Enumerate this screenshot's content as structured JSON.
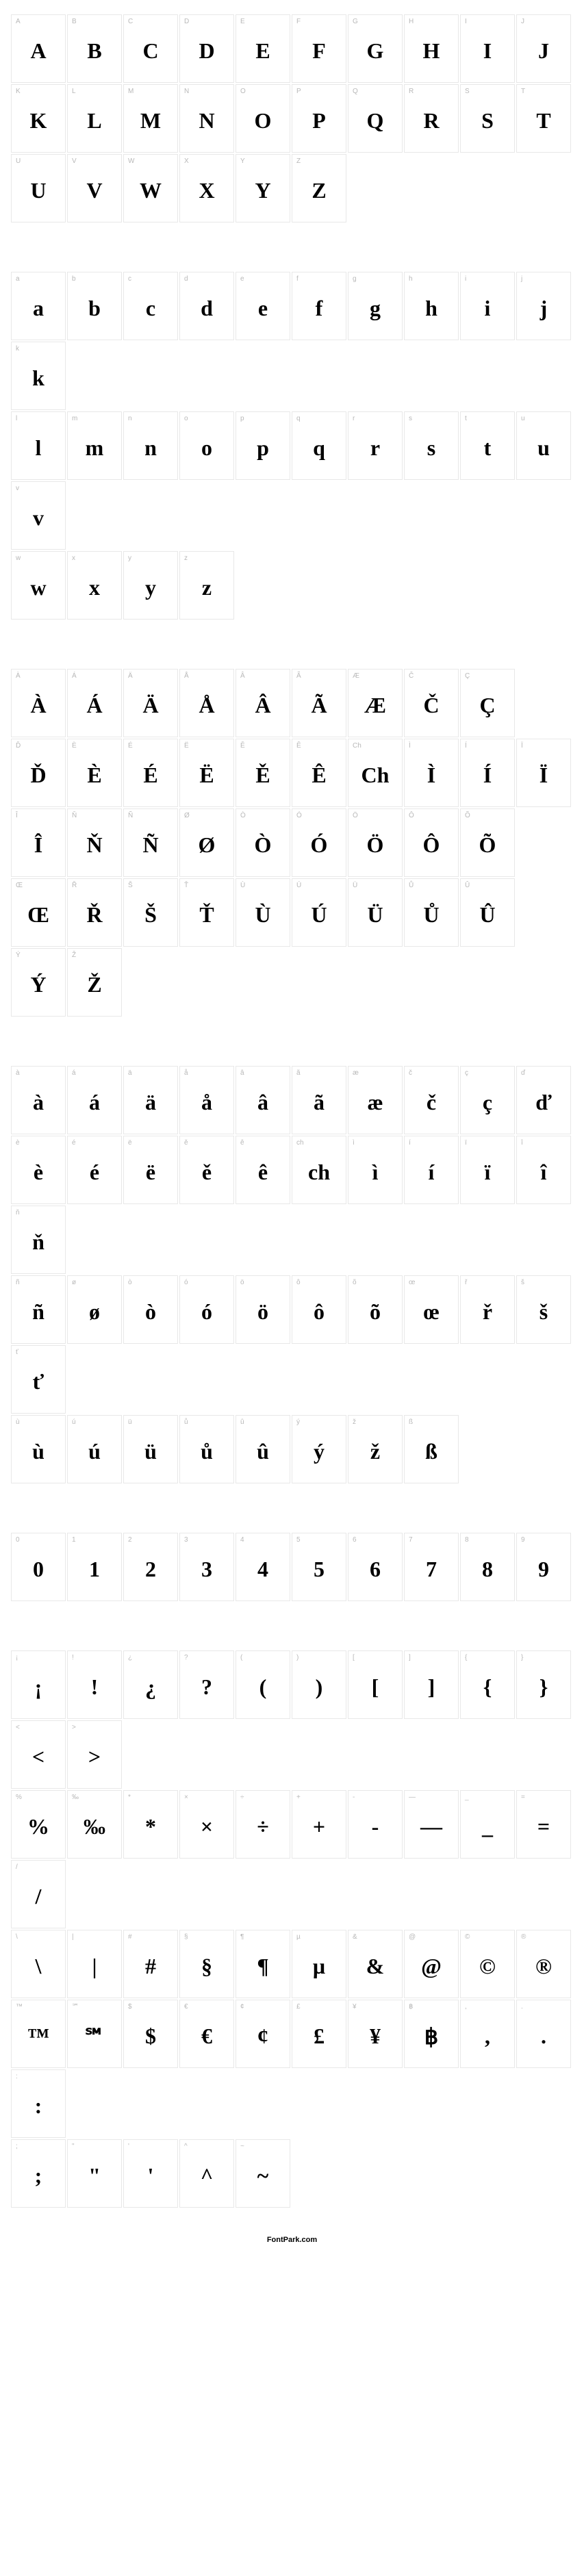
{
  "footer": "FontPark.com",
  "sections": [
    {
      "rows": [
        [
          {
            "l": "A",
            "g": "A"
          },
          {
            "l": "B",
            "g": "B"
          },
          {
            "l": "C",
            "g": "C"
          },
          {
            "l": "D",
            "g": "D"
          },
          {
            "l": "E",
            "g": "E"
          },
          {
            "l": "F",
            "g": "F"
          },
          {
            "l": "G",
            "g": "G"
          },
          {
            "l": "H",
            "g": "H"
          },
          {
            "l": "I",
            "g": "I"
          },
          {
            "l": "J",
            "g": "J"
          }
        ],
        [
          {
            "l": "K",
            "g": "K"
          },
          {
            "l": "L",
            "g": "L"
          },
          {
            "l": "M",
            "g": "M"
          },
          {
            "l": "N",
            "g": "N"
          },
          {
            "l": "O",
            "g": "O"
          },
          {
            "l": "P",
            "g": "P"
          },
          {
            "l": "Q",
            "g": "Q"
          },
          {
            "l": "R",
            "g": "R"
          },
          {
            "l": "S",
            "g": "S"
          },
          {
            "l": "T",
            "g": "T"
          }
        ],
        [
          {
            "l": "U",
            "g": "U"
          },
          {
            "l": "V",
            "g": "V"
          },
          {
            "l": "W",
            "g": "W"
          },
          {
            "l": "X",
            "g": "X"
          },
          {
            "l": "Y",
            "g": "Y"
          },
          {
            "l": "Z",
            "g": "Z"
          }
        ]
      ]
    },
    {
      "rows": [
        [
          {
            "l": "a",
            "g": "a"
          },
          {
            "l": "b",
            "g": "b"
          },
          {
            "l": "c",
            "g": "c"
          },
          {
            "l": "d",
            "g": "d"
          },
          {
            "l": "e",
            "g": "e"
          },
          {
            "l": "f",
            "g": "f"
          },
          {
            "l": "g",
            "g": "g"
          },
          {
            "l": "h",
            "g": "h"
          },
          {
            "l": "i",
            "g": "i"
          },
          {
            "l": "j",
            "g": "j"
          },
          {
            "l": "k",
            "g": "k"
          }
        ],
        [
          {
            "l": "l",
            "g": "l"
          },
          {
            "l": "m",
            "g": "m"
          },
          {
            "l": "n",
            "g": "n"
          },
          {
            "l": "o",
            "g": "o"
          },
          {
            "l": "p",
            "g": "p"
          },
          {
            "l": "q",
            "g": "q"
          },
          {
            "l": "r",
            "g": "r"
          },
          {
            "l": "s",
            "g": "s"
          },
          {
            "l": "t",
            "g": "t"
          },
          {
            "l": "u",
            "g": "u"
          },
          {
            "l": "v",
            "g": "v"
          }
        ],
        [
          {
            "l": "w",
            "g": "w"
          },
          {
            "l": "x",
            "g": "x"
          },
          {
            "l": "y",
            "g": "y"
          },
          {
            "l": "z",
            "g": "z"
          }
        ]
      ]
    },
    {
      "rows": [
        [
          {
            "l": "À",
            "g": "À"
          },
          {
            "l": "Á",
            "g": "Á"
          },
          {
            "l": "Ä",
            "g": "Ä"
          },
          {
            "l": "Å",
            "g": "Å"
          },
          {
            "l": "Â",
            "g": "Â"
          },
          {
            "l": "Ã",
            "g": "Ã"
          },
          {
            "l": "Æ",
            "g": "Æ"
          },
          {
            "l": "Č",
            "g": "Č"
          },
          {
            "l": "Ç",
            "g": "Ç"
          }
        ],
        [
          {
            "l": "Ď",
            "g": "Ď"
          },
          {
            "l": "È",
            "g": "È"
          },
          {
            "l": "É",
            "g": "É"
          },
          {
            "l": "Ë",
            "g": "Ë"
          },
          {
            "l": "Ě",
            "g": "Ě"
          },
          {
            "l": "Ê",
            "g": "Ê"
          },
          {
            "l": "Ch",
            "g": "Ch"
          },
          {
            "l": "Ì",
            "g": "Ì"
          },
          {
            "l": "Í",
            "g": "Í"
          },
          {
            "l": "Ï",
            "g": "Ï"
          }
        ],
        [
          {
            "l": "Î",
            "g": "Î"
          },
          {
            "l": "Ň",
            "g": "Ň"
          },
          {
            "l": "Ñ",
            "g": "Ñ"
          },
          {
            "l": "Ø",
            "g": "Ø"
          },
          {
            "l": "Ò",
            "g": "Ò"
          },
          {
            "l": "Ó",
            "g": "Ó"
          },
          {
            "l": "Ö",
            "g": "Ö"
          },
          {
            "l": "Ô",
            "g": "Ô"
          },
          {
            "l": "Õ",
            "g": "Õ"
          }
        ],
        [
          {
            "l": "Œ",
            "g": "Œ"
          },
          {
            "l": "Ř",
            "g": "Ř"
          },
          {
            "l": "Š",
            "g": "Š"
          },
          {
            "l": "Ť",
            "g": "Ť"
          },
          {
            "l": "Ù",
            "g": "Ù"
          },
          {
            "l": "Ú",
            "g": "Ú"
          },
          {
            "l": "Ü",
            "g": "Ü"
          },
          {
            "l": "Ů",
            "g": "Ů"
          },
          {
            "l": "Û",
            "g": "Û"
          }
        ],
        [
          {
            "l": "Ý",
            "g": "Ý"
          },
          {
            "l": "Ž",
            "g": "Ž"
          }
        ]
      ]
    },
    {
      "rows": [
        [
          {
            "l": "à",
            "g": "à"
          },
          {
            "l": "á",
            "g": "á"
          },
          {
            "l": "ä",
            "g": "ä"
          },
          {
            "l": "å",
            "g": "å"
          },
          {
            "l": "â",
            "g": "â"
          },
          {
            "l": "ã",
            "g": "ã"
          },
          {
            "l": "æ",
            "g": "æ"
          },
          {
            "l": "č",
            "g": "č"
          },
          {
            "l": "ç",
            "g": "ç"
          },
          {
            "l": "ď",
            "g": "ď"
          }
        ],
        [
          {
            "l": "è",
            "g": "è"
          },
          {
            "l": "é",
            "g": "é"
          },
          {
            "l": "ë",
            "g": "ë"
          },
          {
            "l": "ě",
            "g": "ě"
          },
          {
            "l": "ê",
            "g": "ê"
          },
          {
            "l": "ch",
            "g": "ch"
          },
          {
            "l": "ì",
            "g": "ì"
          },
          {
            "l": "í",
            "g": "í"
          },
          {
            "l": "ï",
            "g": "ï"
          },
          {
            "l": "î",
            "g": "î"
          },
          {
            "l": "ň",
            "g": "ň"
          }
        ],
        [
          {
            "l": "ñ",
            "g": "ñ"
          },
          {
            "l": "ø",
            "g": "ø"
          },
          {
            "l": "ò",
            "g": "ò"
          },
          {
            "l": "ó",
            "g": "ó"
          },
          {
            "l": "ö",
            "g": "ö"
          },
          {
            "l": "ô",
            "g": "ô"
          },
          {
            "l": "õ",
            "g": "õ"
          },
          {
            "l": "œ",
            "g": "œ"
          },
          {
            "l": "ř",
            "g": "ř"
          },
          {
            "l": "š",
            "g": "š"
          },
          {
            "l": "ť",
            "g": "ť"
          }
        ],
        [
          {
            "l": "ù",
            "g": "ù"
          },
          {
            "l": "ú",
            "g": "ú"
          },
          {
            "l": "ü",
            "g": "ü"
          },
          {
            "l": "ů",
            "g": "ů"
          },
          {
            "l": "û",
            "g": "û"
          },
          {
            "l": "ý",
            "g": "ý"
          },
          {
            "l": "ž",
            "g": "ž"
          },
          {
            "l": "ß",
            "g": "ß"
          }
        ]
      ]
    },
    {
      "rows": [
        [
          {
            "l": "0",
            "g": "0"
          },
          {
            "l": "1",
            "g": "1"
          },
          {
            "l": "2",
            "g": "2"
          },
          {
            "l": "3",
            "g": "3"
          },
          {
            "l": "4",
            "g": "4"
          },
          {
            "l": "5",
            "g": "5"
          },
          {
            "l": "6",
            "g": "6"
          },
          {
            "l": "7",
            "g": "7"
          },
          {
            "l": "8",
            "g": "8"
          },
          {
            "l": "9",
            "g": "9"
          }
        ]
      ]
    },
    {
      "rows": [
        [
          {
            "l": "¡",
            "g": "¡"
          },
          {
            "l": "!",
            "g": "!"
          },
          {
            "l": "¿",
            "g": "¿"
          },
          {
            "l": "?",
            "g": "?"
          },
          {
            "l": "(",
            "g": "("
          },
          {
            "l": ")",
            "g": ")"
          },
          {
            "l": "[",
            "g": "["
          },
          {
            "l": "]",
            "g": "]"
          },
          {
            "l": "{",
            "g": "{"
          },
          {
            "l": "}",
            "g": "}"
          },
          {
            "l": "<",
            "g": "<"
          },
          {
            "l": ">",
            "g": ">"
          }
        ],
        [
          {
            "l": "%",
            "g": "%"
          },
          {
            "l": "‰",
            "g": "‰"
          },
          {
            "l": "*",
            "g": "*"
          },
          {
            "l": "×",
            "g": "×"
          },
          {
            "l": "÷",
            "g": "÷"
          },
          {
            "l": "+",
            "g": "+"
          },
          {
            "l": "-",
            "g": "-"
          },
          {
            "l": "—",
            "g": "—"
          },
          {
            "l": "_",
            "g": "_"
          },
          {
            "l": "=",
            "g": "="
          },
          {
            "l": "/",
            "g": "/"
          }
        ],
        [
          {
            "l": "\\",
            "g": "\\"
          },
          {
            "l": "|",
            "g": "|"
          },
          {
            "l": "#",
            "g": "#"
          },
          {
            "l": "§",
            "g": "§"
          },
          {
            "l": "¶",
            "g": "¶"
          },
          {
            "l": "µ",
            "g": "µ"
          },
          {
            "l": "&",
            "g": "&"
          },
          {
            "l": "@",
            "g": "@"
          },
          {
            "l": "©",
            "g": "©"
          },
          {
            "l": "®",
            "g": "®"
          }
        ],
        [
          {
            "l": "™",
            "g": "™"
          },
          {
            "l": "℠",
            "g": "℠"
          },
          {
            "l": "$",
            "g": "$"
          },
          {
            "l": "€",
            "g": "€"
          },
          {
            "l": "¢",
            "g": "¢"
          },
          {
            "l": "£",
            "g": "£"
          },
          {
            "l": "¥",
            "g": "¥"
          },
          {
            "l": "฿",
            "g": "฿"
          },
          {
            "l": ",",
            "g": ","
          },
          {
            "l": ".",
            "g": "."
          },
          {
            "l": ":",
            "g": ":"
          }
        ],
        [
          {
            "l": ";",
            "g": ";"
          },
          {
            "l": "\"",
            "g": "\""
          },
          {
            "l": "'",
            "g": "'"
          },
          {
            "l": "^",
            "g": "^"
          },
          {
            "l": "~",
            "g": "~"
          }
        ]
      ]
    }
  ]
}
